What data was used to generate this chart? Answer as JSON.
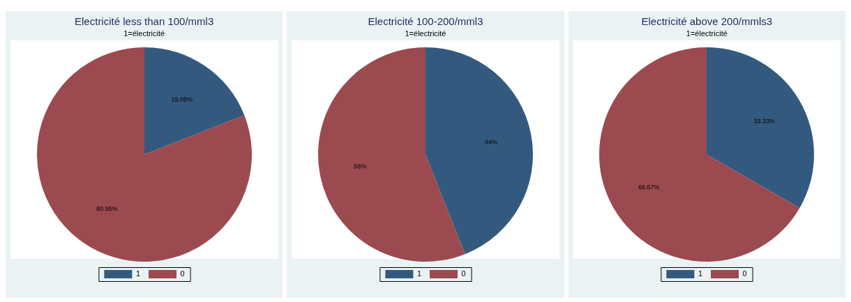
{
  "chart_data": [
    {
      "type": "pie",
      "title": "Electricité less than 100/mml3",
      "subtitle": "1=électricité",
      "categories": [
        "1",
        "0"
      ],
      "values": [
        19.05,
        80.95
      ],
      "colors": [
        "#335a7e",
        "#9b4a50"
      ],
      "value_labels": [
        "19.05%",
        "80.95%"
      ],
      "legend": "bottom"
    },
    {
      "type": "pie",
      "title": "Electricité 100-200/mml3",
      "subtitle": "1=électricité",
      "categories": [
        "1",
        "0"
      ],
      "values": [
        44,
        56
      ],
      "colors": [
        "#335a7e",
        "#9b4a50"
      ],
      "value_labels": [
        "44%",
        "56%"
      ],
      "legend": "bottom"
    },
    {
      "type": "pie",
      "title": "Electricité above 200/mmls3",
      "subtitle": "1=électricité",
      "categories": [
        "1",
        "0"
      ],
      "values": [
        33.33,
        66.67
      ],
      "colors": [
        "#335a7e",
        "#9b4a50"
      ],
      "value_labels": [
        "33.33%",
        "66.67%"
      ],
      "legend": "bottom"
    }
  ]
}
